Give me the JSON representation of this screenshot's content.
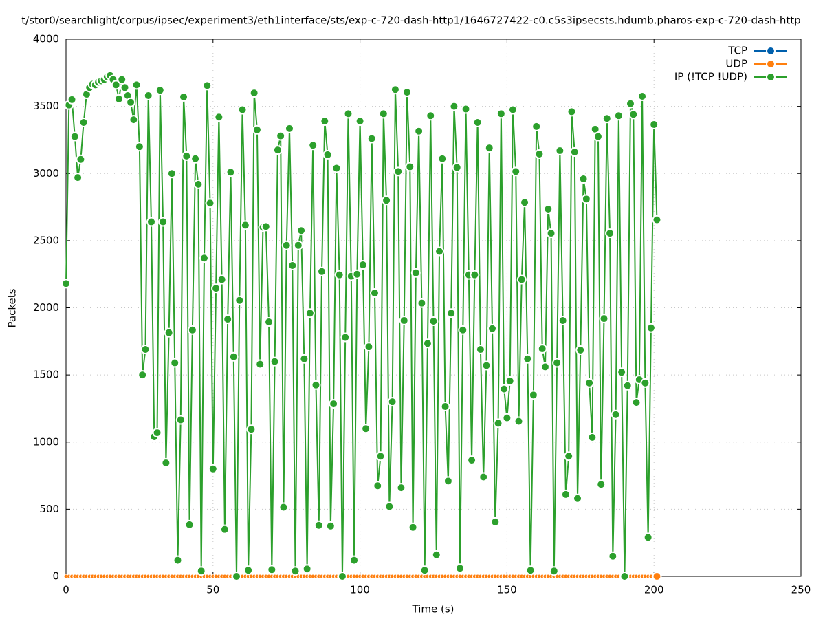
{
  "chart_data": {
    "type": "line",
    "title": "t/stor0/searchlight/corpus/ipsec/experiment3/eth1interface/sts/exp-c-720-dash-http1/1646727422-c0.c5s3ipsecsts.hdumb.pharos-exp-c-720-dash-http",
    "xlabel": "Time (s)",
    "ylabel": "Packets",
    "xlim": [
      0,
      250
    ],
    "ylim": [
      0,
      4000
    ],
    "xticks": [
      0,
      50,
      100,
      150,
      200,
      250
    ],
    "yticks": [
      0,
      500,
      1000,
      1500,
      2000,
      2500,
      3000,
      3500,
      4000
    ],
    "grid": true,
    "legend": "top-right",
    "x": [
      0,
      1,
      2,
      3,
      4,
      5,
      6,
      7,
      8,
      9,
      10,
      11,
      12,
      13,
      14,
      15,
      16,
      17,
      18,
      19,
      20,
      21,
      22,
      23,
      24,
      25,
      26,
      27,
      28,
      29,
      30,
      31,
      32,
      33,
      34,
      35,
      36,
      37,
      38,
      39,
      40,
      41,
      42,
      43,
      44,
      45,
      46,
      47,
      48,
      49,
      50,
      51,
      52,
      53,
      54,
      55,
      56,
      57,
      58,
      59,
      60,
      61,
      62,
      63,
      64,
      65,
      66,
      67,
      68,
      69,
      70,
      71,
      72,
      73,
      74,
      75,
      76,
      77,
      78,
      79,
      80,
      81,
      82,
      83,
      84,
      85,
      86,
      87,
      88,
      89,
      90,
      91,
      92,
      93,
      94,
      95,
      96,
      97,
      98,
      99,
      100,
      101,
      102,
      103,
      104,
      105,
      106,
      107,
      108,
      109,
      110,
      111,
      112,
      113,
      114,
      115,
      116,
      117,
      118,
      119,
      120,
      121,
      122,
      123,
      124,
      125,
      126,
      127,
      128,
      129,
      130,
      131,
      132,
      133,
      134,
      135,
      136,
      137,
      138,
      139,
      140,
      141,
      142,
      143,
      144,
      145,
      146,
      147,
      148,
      149,
      150,
      151,
      152,
      153,
      154,
      155,
      156,
      157,
      158,
      159,
      160,
      161,
      162,
      163,
      164,
      165,
      166,
      167,
      168,
      169,
      170,
      171,
      172,
      173,
      174,
      175,
      176,
      177,
      178,
      179,
      180,
      181,
      182,
      183,
      184,
      185,
      186,
      187,
      188,
      189,
      190,
      191,
      192,
      193,
      194,
      195,
      196,
      197,
      198,
      199,
      200,
      201
    ],
    "series": [
      {
        "name": "TCP",
        "color": "#0060ad",
        "values": [
          0,
          0,
          0,
          0,
          0,
          0,
          0,
          0,
          0,
          0,
          0,
          0,
          0,
          0,
          0,
          0,
          0,
          0,
          0,
          0,
          0,
          0,
          0,
          0,
          0,
          0,
          0,
          0,
          0,
          0,
          0,
          0,
          0,
          0,
          0,
          0,
          0,
          0,
          0,
          0,
          0,
          0,
          0,
          0,
          0,
          0,
          0,
          0,
          0,
          0,
          0,
          0,
          0,
          0,
          0,
          0,
          0,
          0,
          0,
          0,
          0,
          0,
          0,
          0,
          0,
          0,
          0,
          0,
          0,
          0,
          0,
          0,
          0,
          0,
          0,
          0,
          0,
          0,
          0,
          0,
          0,
          0,
          0,
          0,
          0,
          0,
          0,
          0,
          0,
          0,
          0,
          0,
          0,
          0,
          0,
          0,
          0,
          0,
          0,
          0,
          0,
          0,
          0,
          0,
          0,
          0,
          0,
          0,
          0,
          0,
          0,
          0,
          0,
          0,
          0,
          0,
          0,
          0,
          0,
          0,
          0,
          0,
          0,
          0,
          0,
          0,
          0,
          0,
          0,
          0,
          0,
          0,
          0,
          0,
          0,
          0,
          0,
          0,
          0,
          0,
          0,
          0,
          0,
          0,
          0,
          0,
          0,
          0,
          0,
          0,
          0,
          0,
          0,
          0,
          0,
          0,
          0,
          0,
          0,
          0,
          0,
          0,
          0,
          0,
          0,
          0,
          0,
          0,
          0,
          0,
          0,
          0,
          0,
          0,
          0,
          0,
          0,
          0,
          0,
          0,
          0,
          0,
          0,
          0,
          0,
          0,
          0,
          0,
          0,
          0,
          0,
          0,
          0,
          0,
          0,
          0,
          0,
          0,
          0,
          0,
          0,
          0
        ]
      },
      {
        "name": "UDP",
        "color": "#ff7f0e",
        "values": [
          0,
          0,
          0,
          0,
          0,
          0,
          0,
          0,
          0,
          0,
          0,
          0,
          0,
          0,
          0,
          0,
          0,
          0,
          0,
          0,
          0,
          0,
          0,
          0,
          0,
          0,
          0,
          0,
          0,
          0,
          0,
          0,
          0,
          0,
          0,
          0,
          0,
          0,
          0,
          0,
          0,
          0,
          0,
          0,
          0,
          0,
          0,
          0,
          0,
          0,
          0,
          0,
          0,
          0,
          0,
          0,
          0,
          0,
          0,
          0,
          0,
          0,
          0,
          0,
          0,
          0,
          0,
          0,
          0,
          0,
          0,
          0,
          0,
          0,
          0,
          0,
          0,
          0,
          0,
          0,
          0,
          0,
          0,
          0,
          0,
          0,
          0,
          0,
          0,
          0,
          0,
          0,
          0,
          0,
          0,
          0,
          0,
          0,
          0,
          0,
          0,
          0,
          0,
          0,
          0,
          0,
          0,
          0,
          0,
          0,
          0,
          0,
          0,
          0,
          0,
          0,
          0,
          0,
          0,
          0,
          0,
          0,
          0,
          0,
          0,
          0,
          0,
          0,
          0,
          0,
          0,
          0,
          0,
          0,
          0,
          0,
          0,
          0,
          0,
          0,
          0,
          0,
          0,
          0,
          0,
          0,
          0,
          0,
          0,
          0,
          0,
          0,
          0,
          0,
          0,
          0,
          0,
          0,
          0,
          0,
          0,
          0,
          0,
          0,
          0,
          0,
          0,
          0,
          0,
          0,
          0,
          0,
          0,
          0,
          0,
          0,
          0,
          0,
          0,
          0,
          0,
          0,
          0,
          0,
          0,
          0,
          0,
          0,
          0,
          0,
          0,
          0,
          0,
          0,
          0,
          0,
          0,
          0,
          0,
          0,
          0,
          0
        ]
      },
      {
        "name": "IP (!TCP  !UDP)",
        "color": "#2ca02c",
        "values": [
          2180,
          3510,
          3550,
          3275,
          2970,
          3105,
          3380,
          3590,
          3640,
          3665,
          3660,
          3680,
          3690,
          3700,
          3720,
          3730,
          3700,
          3660,
          3555,
          3700,
          3640,
          3580,
          3530,
          3400,
          3660,
          3200,
          1500,
          1690,
          3580,
          2640,
          1040,
          1070,
          3620,
          2640,
          845,
          1815,
          3000,
          1590,
          120,
          1165,
          3570,
          3130,
          385,
          1835,
          3110,
          2920,
          40,
          2370,
          3655,
          2780,
          800,
          2145,
          3420,
          2210,
          350,
          1915,
          3010,
          1635,
          0,
          2055,
          3475,
          2615,
          45,
          1095,
          3600,
          3325,
          1580,
          2600,
          2605,
          1895,
          50,
          1600,
          3175,
          3280,
          515,
          2465,
          3335,
          2315,
          40,
          2465,
          2575,
          1620,
          55,
          1960,
          3210,
          1425,
          380,
          2270,
          3390,
          3140,
          375,
          1285,
          3040,
          2245,
          0,
          1780,
          3445,
          2235,
          120,
          2250,
          3390,
          2320,
          1100,
          1710,
          3260,
          2110,
          675,
          895,
          3445,
          2800,
          520,
          1300,
          3625,
          3015,
          660,
          1905,
          3605,
          3050,
          365,
          2260,
          3315,
          2035,
          45,
          1735,
          3430,
          1900,
          160,
          2420,
          3110,
          1265,
          710,
          1960,
          3500,
          3045,
          60,
          1835,
          3480,
          2245,
          865,
          2245,
          3380,
          1690,
          740,
          1570,
          3190,
          1845,
          405,
          1140,
          3445,
          1395,
          1180,
          1455,
          3475,
          3015,
          1155,
          2210,
          2785,
          1620,
          45,
          1350,
          3350,
          3145,
          1695,
          1560,
          2735,
          2555,
          40,
          1590,
          3170,
          1905,
          610,
          895,
          3460,
          3160,
          580,
          1685,
          2960,
          2810,
          1440,
          1035,
          3330,
          3275,
          685,
          1920,
          3410,
          2555,
          150,
          1205,
          3430,
          1520,
          0,
          1420,
          3520,
          3440,
          1295,
          1465,
          3575,
          1440,
          290,
          1850,
          3365,
          2655
        ]
      }
    ]
  }
}
